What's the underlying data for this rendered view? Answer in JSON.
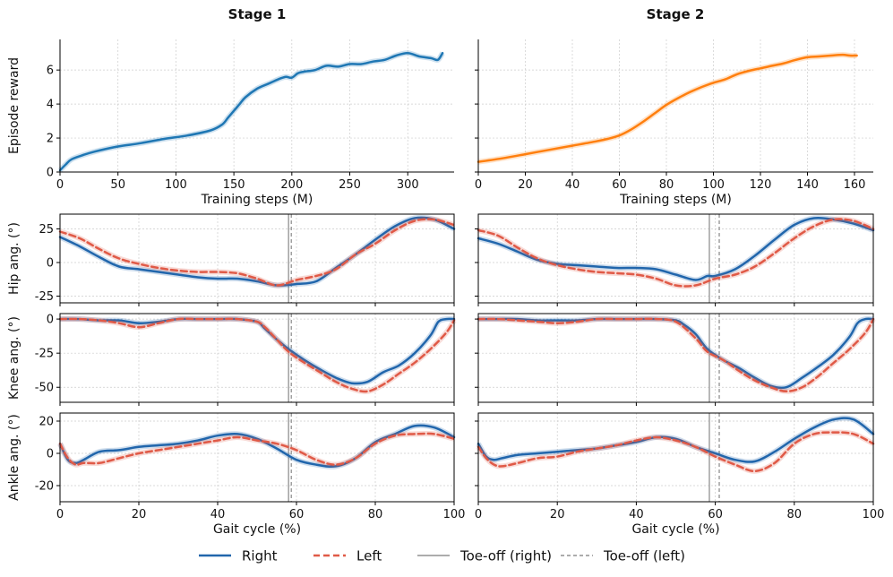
{
  "colors": {
    "right": "#2166ac",
    "left": "#e05a47",
    "reward_stage1": "#1f77b4",
    "reward_stage2": "#ff7f0e",
    "toeoff": "#a0a0a0",
    "grid": "#cccccc"
  },
  "columns": [
    "Stage 1",
    "Stage 2"
  ],
  "legend": [
    {
      "label": "Right",
      "style": "right"
    },
    {
      "label": "Left",
      "style": "left"
    },
    {
      "label": "Toe-off (right)",
      "style": "toeoff-right"
    },
    {
      "label": "Toe-off (left)",
      "style": "toeoff-left"
    }
  ],
  "chart_data": [
    {
      "id": "reward-stage1",
      "type": "line",
      "title": "Stage 1",
      "xlabel": "Training steps (M)",
      "ylabel": "Episode reward",
      "xlim": [
        0,
        340
      ],
      "ylim": [
        0,
        7.8
      ],
      "xticks": [
        0,
        50,
        100,
        150,
        200,
        250,
        300
      ],
      "yticks": [
        0,
        2,
        4,
        6
      ],
      "grid": true,
      "series": [
        {
          "color_key": "reward_stage1",
          "x": [
            0,
            5,
            10,
            20,
            30,
            50,
            70,
            90,
            110,
            130,
            140,
            145,
            150,
            155,
            160,
            170,
            180,
            190,
            195,
            200,
            205,
            210,
            220,
            230,
            240,
            250,
            260,
            270,
            280,
            290,
            300,
            310,
            320,
            326,
            330
          ],
          "y": [
            0.1,
            0.45,
            0.75,
            1.0,
            1.2,
            1.5,
            1.7,
            1.95,
            2.15,
            2.45,
            2.8,
            3.2,
            3.6,
            4.0,
            4.4,
            4.9,
            5.2,
            5.5,
            5.6,
            5.55,
            5.8,
            5.9,
            6.0,
            6.25,
            6.2,
            6.35,
            6.35,
            6.5,
            6.6,
            6.85,
            7.0,
            6.8,
            6.7,
            6.6,
            7.0
          ]
        }
      ]
    },
    {
      "id": "reward-stage2",
      "type": "line",
      "title": "Stage 2",
      "xlabel": "Training steps (M)",
      "ylabel": "",
      "xlim": [
        0,
        168
      ],
      "ylim": [
        0,
        7.8
      ],
      "xticks": [
        0,
        20,
        40,
        60,
        80,
        100,
        120,
        140,
        160
      ],
      "yticks": [
        0,
        2,
        4,
        6
      ],
      "grid": true,
      "series": [
        {
          "color_key": "reward_stage2",
          "x": [
            0,
            10,
            20,
            30,
            40,
            50,
            55,
            60,
            65,
            70,
            75,
            80,
            85,
            90,
            95,
            100,
            105,
            110,
            115,
            120,
            125,
            130,
            135,
            140,
            145,
            150,
            155,
            158,
            161
          ],
          "y": [
            0.6,
            0.8,
            1.05,
            1.3,
            1.55,
            1.8,
            1.95,
            2.15,
            2.5,
            2.95,
            3.45,
            3.95,
            4.35,
            4.7,
            5.0,
            5.25,
            5.45,
            5.75,
            5.95,
            6.1,
            6.25,
            6.4,
            6.6,
            6.75,
            6.8,
            6.85,
            6.9,
            6.85,
            6.85
          ]
        }
      ]
    },
    {
      "id": "hip-stage1",
      "type": "line",
      "ylabel": "Hip ang. (°)",
      "xlim": [
        0,
        100
      ],
      "ylim": [
        -30,
        36
      ],
      "xticks": [
        0,
        20,
        40,
        60,
        80,
        100
      ],
      "yticks": [
        -25,
        0,
        25
      ],
      "grid": true,
      "toeoff": {
        "right": 58,
        "left": 58.7
      },
      "series": [
        {
          "name": "Right",
          "color_key": "right",
          "x": [
            0,
            5,
            10,
            15,
            20,
            25,
            30,
            35,
            40,
            45,
            50,
            55,
            60,
            65,
            70,
            75,
            80,
            85,
            90,
            95,
            100
          ],
          "y": [
            19,
            12,
            4,
            -3,
            -5,
            -7,
            -9,
            -11,
            -12,
            -12,
            -14,
            -17,
            -16,
            -14,
            -4,
            6,
            17,
            27,
            33,
            32,
            25
          ]
        },
        {
          "name": "Left",
          "color_key": "left",
          "x": [
            0,
            5,
            10,
            15,
            20,
            25,
            30,
            35,
            40,
            45,
            50,
            55,
            60,
            65,
            70,
            75,
            80,
            85,
            90,
            95,
            100
          ],
          "y": [
            23,
            18,
            10,
            3,
            -1,
            -4,
            -6,
            -7,
            -7,
            -8,
            -12,
            -17,
            -13,
            -10,
            -5,
            6,
            14,
            24,
            31,
            32,
            28
          ]
        }
      ]
    },
    {
      "id": "hip-stage2",
      "type": "line",
      "ylabel": "",
      "xlim": [
        0,
        100
      ],
      "ylim": [
        -30,
        36
      ],
      "xticks": [
        0,
        20,
        40,
        60,
        80,
        100
      ],
      "yticks": [
        -25,
        0,
        25
      ],
      "grid": true,
      "toeoff": {
        "right": 58.5,
        "left": 61
      },
      "series": [
        {
          "name": "Right",
          "color_key": "right",
          "x": [
            0,
            5,
            10,
            15,
            20,
            25,
            30,
            35,
            40,
            45,
            50,
            55,
            58,
            60,
            65,
            70,
            75,
            80,
            85,
            90,
            95,
            100
          ],
          "y": [
            18,
            14,
            8,
            2,
            -1,
            -2,
            -3,
            -4,
            -4,
            -5,
            -9,
            -13,
            -10,
            -10,
            -5,
            5,
            17,
            28,
            33,
            32,
            29,
            24
          ]
        },
        {
          "name": "Left",
          "color_key": "left",
          "x": [
            0,
            5,
            10,
            15,
            20,
            25,
            30,
            35,
            40,
            45,
            50,
            55,
            60,
            65,
            70,
            75,
            80,
            85,
            90,
            95,
            100
          ],
          "y": [
            24,
            20,
            11,
            3,
            -2,
            -5,
            -7,
            -8,
            -9,
            -12,
            -17,
            -17,
            -12,
            -9,
            -3,
            7,
            18,
            27,
            32,
            31,
            25
          ]
        }
      ]
    },
    {
      "id": "knee-stage1",
      "type": "line",
      "ylabel": "Knee ang. (°)",
      "xlim": [
        0,
        100
      ],
      "ylim": [
        -61,
        4
      ],
      "xticks": [
        0,
        20,
        40,
        60,
        80,
        100
      ],
      "yticks": [
        -50,
        -25,
        0
      ],
      "grid": true,
      "toeoff": {
        "right": 58,
        "left": 58.7
      },
      "series": [
        {
          "name": "Right",
          "color_key": "right",
          "x": [
            0,
            5,
            10,
            15,
            20,
            25,
            30,
            35,
            40,
            45,
            50,
            52,
            55,
            58,
            62,
            66,
            70,
            74,
            78,
            82,
            86,
            90,
            94,
            96,
            98,
            100
          ],
          "y": [
            0,
            0,
            -1,
            -1,
            -3,
            -2,
            0,
            0,
            0,
            0,
            -2,
            -7,
            -15,
            -22,
            -30,
            -37,
            -43,
            -47,
            -46,
            -39,
            -34,
            -25,
            -12,
            -2,
            0,
            0
          ]
        },
        {
          "name": "Left",
          "color_key": "left",
          "x": [
            0,
            5,
            10,
            15,
            20,
            25,
            30,
            35,
            40,
            45,
            50,
            52,
            55,
            58,
            62,
            66,
            70,
            74,
            78,
            82,
            86,
            90,
            94,
            98,
            100
          ],
          "y": [
            0,
            0,
            -1,
            -3,
            -6,
            -3,
            0,
            0,
            0,
            0,
            -2,
            -6,
            -15,
            -24,
            -32,
            -39,
            -46,
            -51,
            -53,
            -48,
            -40,
            -32,
            -22,
            -10,
            -1
          ]
        }
      ]
    },
    {
      "id": "knee-stage2",
      "type": "line",
      "ylabel": "",
      "xlim": [
        0,
        100
      ],
      "ylim": [
        -61,
        4
      ],
      "xticks": [
        0,
        20,
        40,
        60,
        80,
        100
      ],
      "yticks": [
        -50,
        -25,
        0
      ],
      "grid": true,
      "toeoff": {
        "right": 58.5,
        "left": 61
      },
      "series": [
        {
          "name": "Right",
          "color_key": "right",
          "x": [
            0,
            5,
            10,
            15,
            20,
            25,
            30,
            35,
            40,
            45,
            50,
            52,
            55,
            58,
            62,
            66,
            70,
            74,
            78,
            82,
            86,
            90,
            94,
            96,
            98,
            100
          ],
          "y": [
            0,
            0,
            0,
            -1,
            -1,
            -1,
            0,
            0,
            0,
            0,
            -1,
            -4,
            -11,
            -22,
            -30,
            -36,
            -43,
            -49,
            -50,
            -43,
            -35,
            -26,
            -13,
            -3,
            0,
            0
          ]
        },
        {
          "name": "Left",
          "color_key": "left",
          "x": [
            0,
            5,
            10,
            15,
            20,
            25,
            30,
            35,
            40,
            45,
            50,
            55,
            58,
            62,
            66,
            70,
            74,
            78,
            82,
            86,
            90,
            94,
            98,
            100
          ],
          "y": [
            0,
            0,
            -1,
            -2,
            -3,
            -2,
            0,
            0,
            0,
            0,
            -2,
            -14,
            -24,
            -30,
            -38,
            -45,
            -50,
            -53,
            -50,
            -42,
            -32,
            -22,
            -10,
            0
          ]
        }
      ]
    },
    {
      "id": "ankle-stage1",
      "type": "line",
      "ylabel": "Ankle ang. (°)",
      "xlabel": "Gait cycle (%)",
      "xlim": [
        0,
        100
      ],
      "ylim": [
        -30,
        25
      ],
      "xticks": [
        0,
        20,
        40,
        60,
        80,
        100
      ],
      "yticks": [
        -20,
        0,
        20
      ],
      "grid": true,
      "toeoff": {
        "right": 58,
        "left": 58.7
      },
      "series": [
        {
          "name": "Right",
          "color_key": "right",
          "x": [
            0,
            2,
            4,
            6,
            10,
            15,
            20,
            25,
            30,
            35,
            40,
            45,
            50,
            55,
            60,
            65,
            70,
            75,
            80,
            85,
            90,
            95,
            100
          ],
          "y": [
            6,
            -4,
            -6,
            -4,
            1,
            2,
            4,
            5,
            6,
            8,
            11,
            12,
            9,
            3,
            -4,
            -7,
            -8,
            -3,
            7,
            12,
            17,
            16,
            10
          ]
        },
        {
          "name": "Left",
          "color_key": "left",
          "x": [
            0,
            2,
            4,
            6,
            10,
            15,
            20,
            25,
            30,
            35,
            40,
            45,
            50,
            55,
            60,
            65,
            70,
            75,
            80,
            85,
            90,
            95,
            100
          ],
          "y": [
            6,
            -3,
            -7,
            -6,
            -6,
            -3,
            0,
            2,
            4,
            6,
            8,
            10,
            8,
            6,
            2,
            -4,
            -7,
            -3,
            6,
            11,
            12,
            12,
            9
          ]
        }
      ]
    },
    {
      "id": "ankle-stage2",
      "type": "line",
      "ylabel": "",
      "xlabel": "Gait cycle (%)",
      "xlim": [
        0,
        100
      ],
      "ylim": [
        -30,
        25
      ],
      "xticks": [
        0,
        20,
        40,
        60,
        80,
        100
      ],
      "yticks": [
        -20,
        0,
        20
      ],
      "grid": true,
      "toeoff": {
        "right": 58.5,
        "left": 61
      },
      "series": [
        {
          "name": "Right",
          "color_key": "right",
          "x": [
            0,
            2,
            4,
            6,
            10,
            15,
            20,
            25,
            30,
            35,
            40,
            45,
            50,
            55,
            60,
            65,
            70,
            75,
            80,
            85,
            90,
            95,
            100
          ],
          "y": [
            6,
            -2,
            -4,
            -3,
            -1,
            0,
            1,
            2,
            3,
            5,
            7,
            10,
            9,
            4,
            0,
            -4,
            -5,
            1,
            9,
            16,
            21,
            21,
            12
          ]
        },
        {
          "name": "Left",
          "color_key": "left",
          "x": [
            0,
            2,
            4,
            6,
            10,
            15,
            20,
            25,
            30,
            35,
            40,
            45,
            50,
            55,
            60,
            65,
            70,
            75,
            80,
            85,
            90,
            95,
            100
          ],
          "y": [
            4,
            -3,
            -7,
            -8,
            -6,
            -3,
            -2,
            1,
            3,
            5,
            8,
            10,
            8,
            4,
            -2,
            -7,
            -11,
            -6,
            6,
            12,
            13,
            12,
            6
          ]
        }
      ]
    }
  ]
}
